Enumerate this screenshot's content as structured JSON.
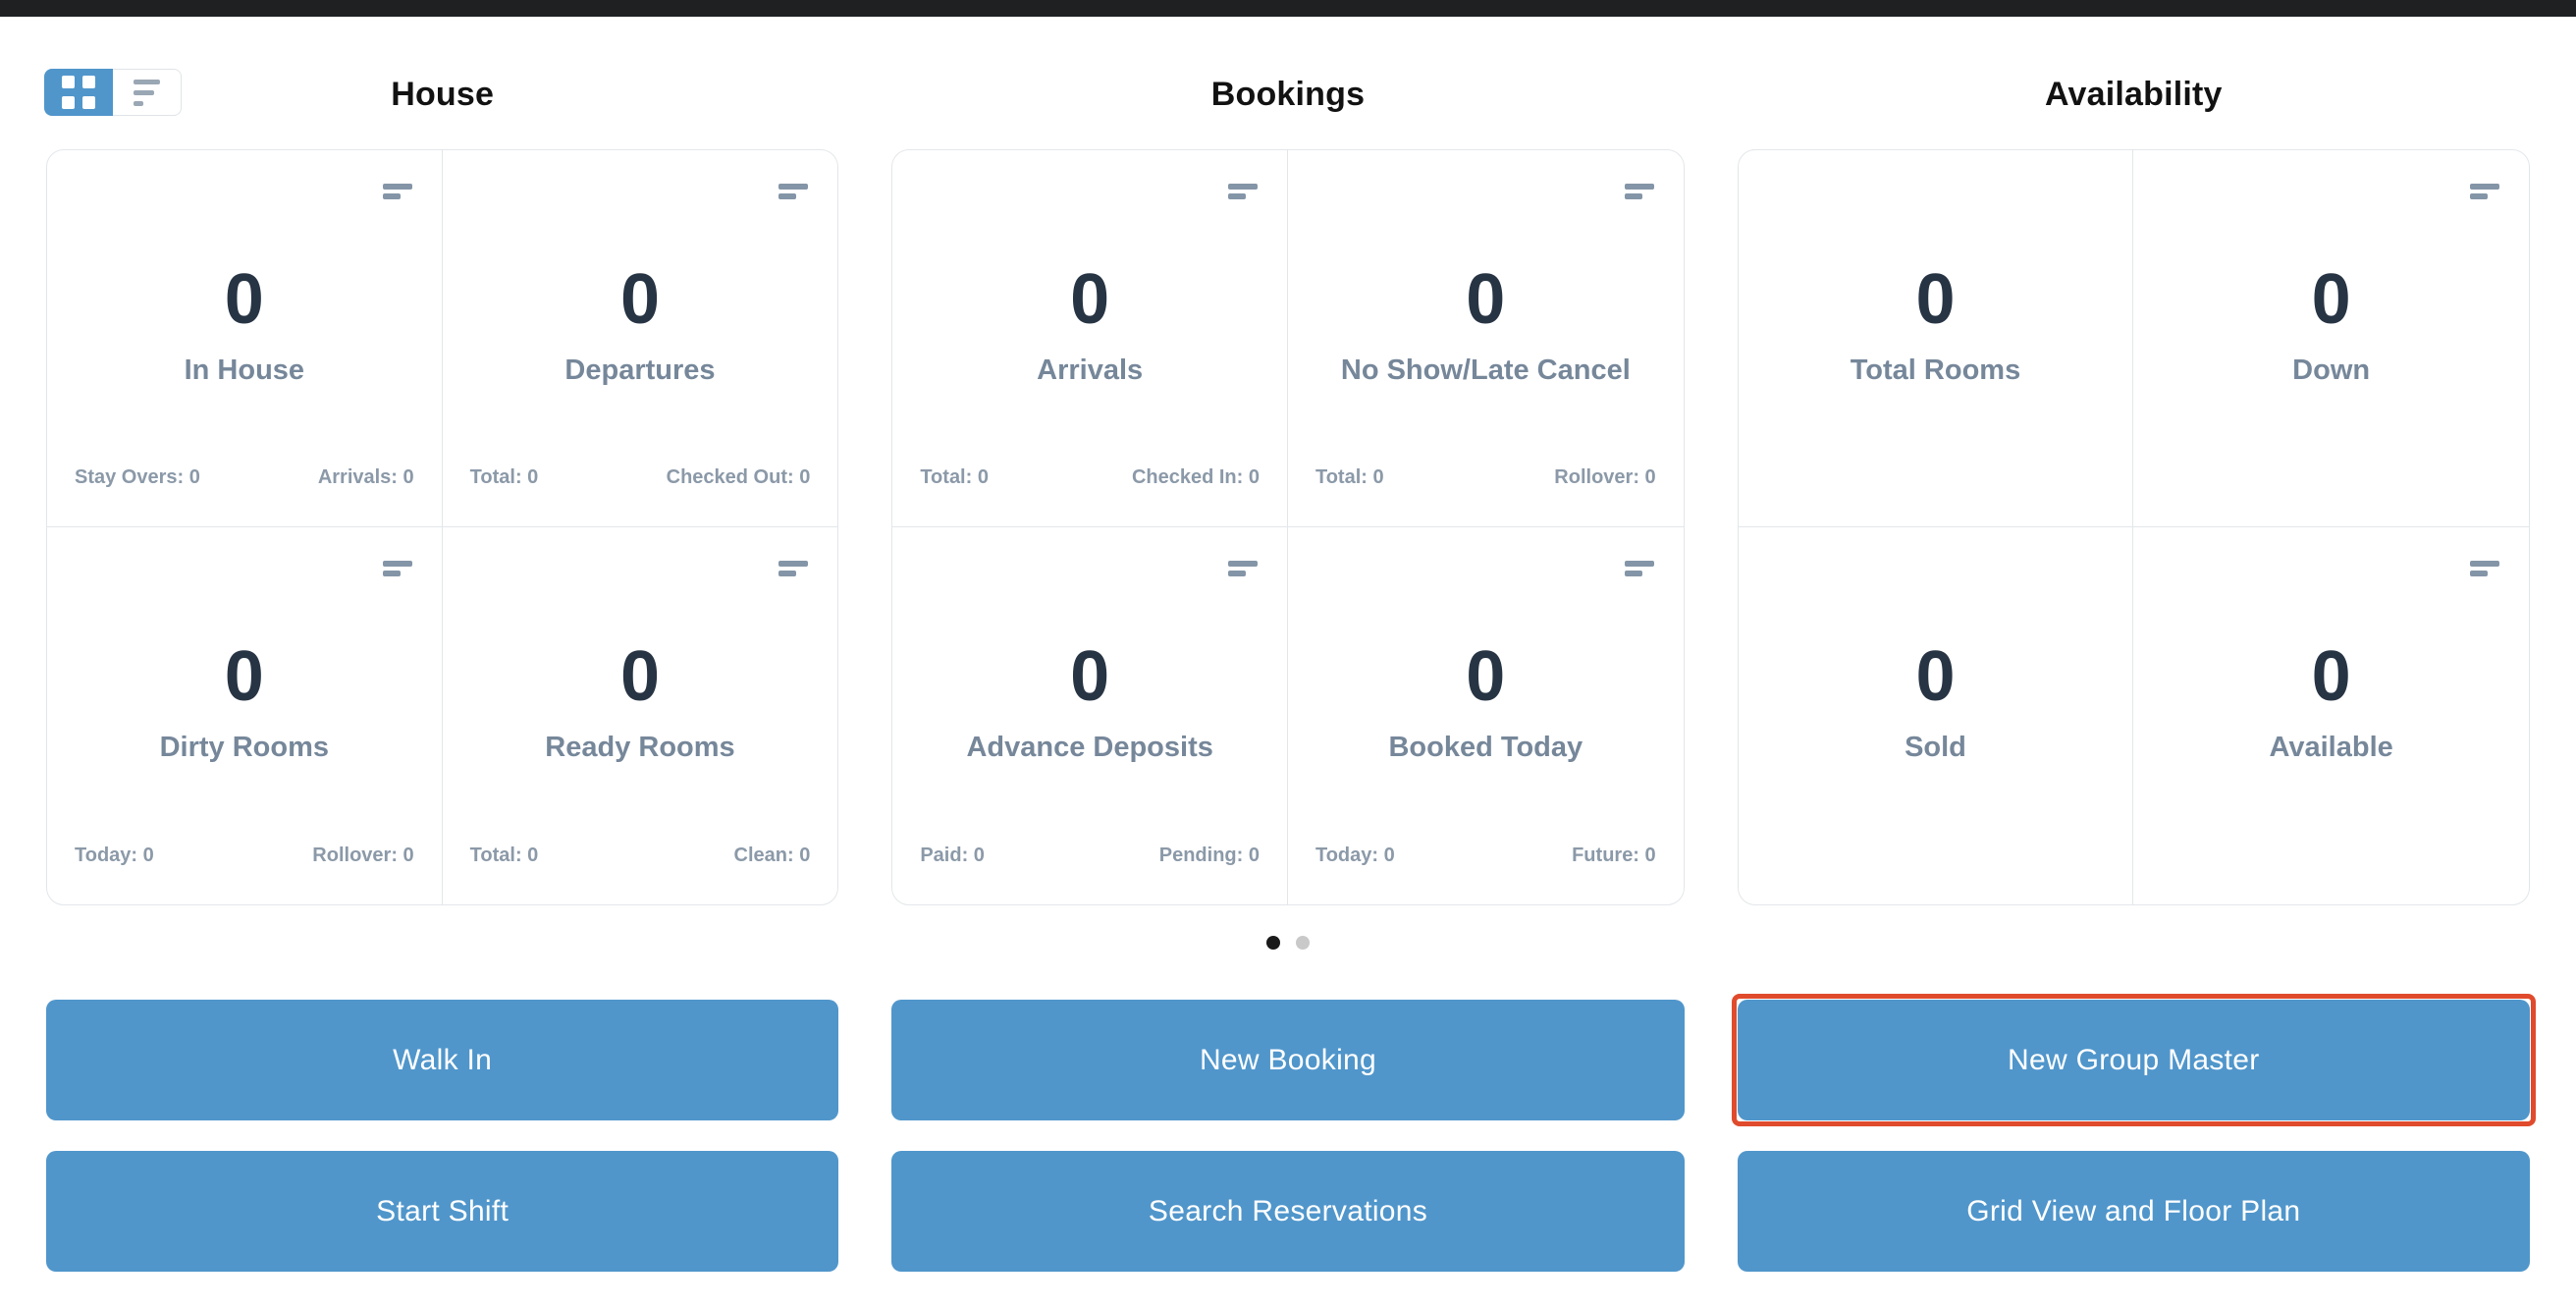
{
  "colors": {
    "accent_blue": "#5096cb",
    "highlight_red": "#e04b2d",
    "stat_number": "#273444",
    "stat_label": "#76879a",
    "top_bar": "#1e2022"
  },
  "sections": [
    {
      "title": "House",
      "cards": [
        {
          "value": "0",
          "label": "In House",
          "footer_left": "Stay Overs: 0",
          "footer_right": "Arrivals: 0"
        },
        {
          "value": "0",
          "label": "Departures",
          "footer_left": "Total: 0",
          "footer_right": "Checked Out: 0"
        },
        {
          "value": "0",
          "label": "Dirty Rooms",
          "footer_left": "Today: 0",
          "footer_right": "Rollover: 0"
        },
        {
          "value": "0",
          "label": "Ready Rooms",
          "footer_left": "Total: 0",
          "footer_right": "Clean: 0"
        }
      ]
    },
    {
      "title": "Bookings",
      "cards": [
        {
          "value": "0",
          "label": "Arrivals",
          "footer_left": "Total: 0",
          "footer_right": "Checked In: 0"
        },
        {
          "value": "0",
          "label": "No Show/Late Cancel",
          "footer_left": "Total: 0",
          "footer_right": "Rollover: 0"
        },
        {
          "value": "0",
          "label": "Advance Deposits",
          "footer_left": "Paid: 0",
          "footer_right": "Pending: 0"
        },
        {
          "value": "0",
          "label": "Booked Today",
          "footer_left": "Today: 0",
          "footer_right": "Future: 0"
        }
      ]
    },
    {
      "title": "Availability",
      "cards": [
        {
          "value": "0",
          "label": "Total Rooms"
        },
        {
          "value": "0",
          "label": "Down"
        },
        {
          "value": "0",
          "label": "Sold"
        },
        {
          "value": "0",
          "label": "Available"
        }
      ]
    }
  ],
  "carousel": {
    "dots": [
      "active",
      "inactive"
    ]
  },
  "actions": {
    "walk_in": "Walk In",
    "new_booking": "New Booking",
    "new_group_master": "New Group Master",
    "start_shift": "Start Shift",
    "search_reservations": "Search Reservations",
    "grid_view_floor_plan": "Grid View and Floor Plan"
  }
}
